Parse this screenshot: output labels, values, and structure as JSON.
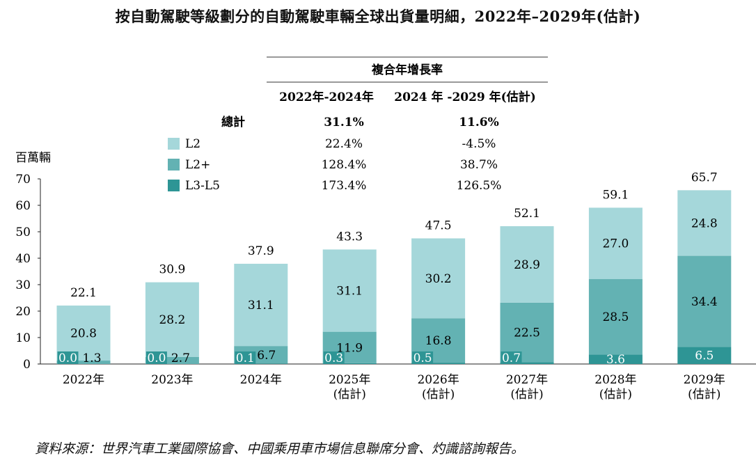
{
  "title": "按自動駕駛等級劃分的自動駕駛車輛全球出貨量明細，2022年–2029年(估計)",
  "source": "資料來源：世界汽車工業國際協會、中國乘用車市場信息聯席分會、灼識諮詢報告。",
  "cagr_table": {
    "header": "複合年增長率",
    "col1": "2022年-2024年",
    "col2": "2024 年 -2029 年(估計)",
    "rows": [
      {
        "label": "總計",
        "v1": "31.1%",
        "v2": "11.6%",
        "bold": true
      },
      {
        "label": "L2",
        "v1": "22.4%",
        "v2": "-4.5%",
        "color": "#a5d7da"
      },
      {
        "label": "L2+",
        "v1": "128.4%",
        "v2": "38.7%",
        "color": "#63b2b3"
      },
      {
        "label": "L3-L5",
        "v1": "173.4%",
        "v2": "126.5%",
        "color": "#2e9595"
      }
    ]
  },
  "colors": {
    "L2": "#a5d7da",
    "L2+": "#63b2b3",
    "L3-L5": "#2e9595",
    "text_on_dark": "#ffffff"
  },
  "chart_data": {
    "type": "bar",
    "stacked": true,
    "ylabel": "百萬輛",
    "ylim": [
      0,
      70
    ],
    "yticks": [
      0,
      10,
      20,
      30,
      40,
      50,
      60,
      70
    ],
    "grid": false,
    "legend": "top-left",
    "categories": [
      [
        "2022年"
      ],
      [
        "2023年"
      ],
      [
        "2024年"
      ],
      [
        "2025年",
        "(估計)"
      ],
      [
        "2026年",
        "(估計)"
      ],
      [
        "2027年",
        "(估計)"
      ],
      [
        "2028年",
        "(估計)"
      ],
      [
        "2029年",
        "(估計)"
      ]
    ],
    "series": [
      {
        "name": "L3-L5",
        "values": [
          0.0,
          0.0,
          0.1,
          0.3,
          0.5,
          0.7,
          3.6,
          6.5
        ]
      },
      {
        "name": "L2+",
        "values": [
          1.3,
          2.7,
          6.7,
          11.9,
          16.8,
          22.5,
          28.5,
          34.4
        ]
      },
      {
        "name": "L2",
        "values": [
          20.8,
          28.2,
          31.1,
          31.1,
          30.2,
          28.9,
          27.0,
          24.8
        ]
      }
    ],
    "totals": [
      22.1,
      30.9,
      37.9,
      43.3,
      47.5,
      52.1,
      59.1,
      65.7
    ]
  }
}
